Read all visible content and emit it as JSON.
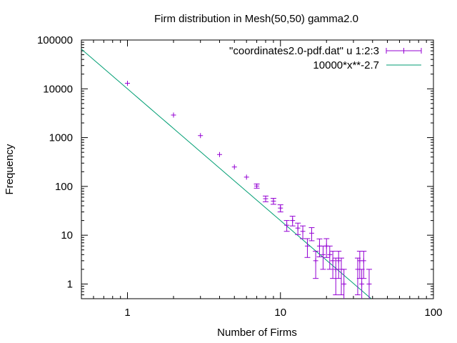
{
  "chart_data": {
    "type": "scatter",
    "title": "Firm distribution in Mesh(50,50) gamma2.0",
    "xlabel": "Number of Firms",
    "ylabel": "Frequency",
    "x_scale": "log",
    "y_scale": "log",
    "xlim": [
      0.5,
      100
    ],
    "ylim": [
      0.5,
      100000
    ],
    "x_ticks": [
      1,
      10,
      100
    ],
    "x_tick_labels": [
      "1",
      "10",
      "100"
    ],
    "y_ticks": [
      1,
      10,
      100,
      1000,
      10000,
      100000
    ],
    "y_tick_labels": [
      "1",
      "10",
      "100",
      "1000",
      "10000",
      "100000"
    ],
    "grid": false,
    "legend_placement": "top-right",
    "series": [
      {
        "name": "\"coordinates2.0-pdf.dat\" u 1:2:3",
        "style": "points-with-yerrorbars",
        "color": "#9400d3",
        "points": [
          {
            "x": 1,
            "y": 13000,
            "err": 110
          },
          {
            "x": 2,
            "y": 2900,
            "err": 54
          },
          {
            "x": 3,
            "y": 1100,
            "err": 33
          },
          {
            "x": 4,
            "y": 450,
            "err": 21
          },
          {
            "x": 5,
            "y": 250,
            "err": 16
          },
          {
            "x": 6,
            "y": 155,
            "err": 12
          },
          {
            "x": 7,
            "y": 102,
            "err": 10
          },
          {
            "x": 8,
            "y": 56,
            "err": 7.5
          },
          {
            "x": 9,
            "y": 50,
            "err": 7
          },
          {
            "x": 10,
            "y": 36,
            "err": 6
          },
          {
            "x": 11,
            "y": 16,
            "err": 4
          },
          {
            "x": 12,
            "y": 20,
            "err": 4.5
          },
          {
            "x": 13,
            "y": 14,
            "err": 3.7
          },
          {
            "x": 14,
            "y": 12,
            "err": 3.5
          },
          {
            "x": 15,
            "y": 6,
            "err": 2.5
          },
          {
            "x": 16,
            "y": 11,
            "err": 3.3
          },
          {
            "x": 17,
            "y": 3,
            "err": 1.7
          },
          {
            "x": 18,
            "y": 6,
            "err": 2.4
          },
          {
            "x": 19,
            "y": 4,
            "err": 2
          },
          {
            "x": 20,
            "y": 6,
            "err": 2.5
          },
          {
            "x": 21,
            "y": 4,
            "err": 2
          },
          {
            "x": 22,
            "y": 3,
            "err": 1.7
          },
          {
            "x": 23,
            "y": 2,
            "err": 1.4
          },
          {
            "x": 24,
            "y": 3,
            "err": 1.7
          },
          {
            "x": 25,
            "y": 2,
            "err": 1.4
          },
          {
            "x": 26,
            "y": 1,
            "err": 1
          },
          {
            "x": 32,
            "y": 2,
            "err": 1.4
          },
          {
            "x": 33,
            "y": 3,
            "err": 1.7
          },
          {
            "x": 34,
            "y": 1,
            "err": 1
          },
          {
            "x": 35,
            "y": 3,
            "err": 1.7
          },
          {
            "x": 38,
            "y": 1,
            "err": 1
          }
        ]
      },
      {
        "name": "10000*x**-2.7",
        "style": "line",
        "color": "#009e73",
        "function": {
          "a": 10000,
          "b": -2.7
        },
        "x_range": [
          0.5,
          39
        ]
      }
    ]
  }
}
